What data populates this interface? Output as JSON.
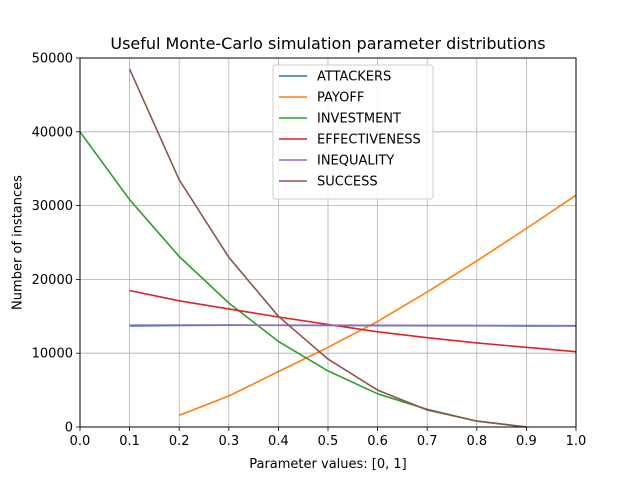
{
  "chart_data": {
    "type": "line",
    "title": "Useful Monte-Carlo simulation parameter distributions",
    "xlabel": "Parameter values: [0, 1]",
    "ylabel": "Number of instances",
    "xlim": [
      0.0,
      1.0
    ],
    "ylim": [
      0,
      50000
    ],
    "xticks": [
      "0.0",
      "0.1",
      "0.2",
      "0.3",
      "0.4",
      "0.5",
      "0.6",
      "0.7",
      "0.8",
      "0.9",
      "1.0"
    ],
    "yticks": [
      "0",
      "10000",
      "20000",
      "30000",
      "40000",
      "50000"
    ],
    "grid": true,
    "legend_position": "top-center",
    "series": [
      {
        "name": "ATTACKERS",
        "color": "#1f77b4",
        "x": [
          0.1,
          0.2,
          0.3,
          0.4,
          0.5,
          0.6,
          0.7,
          0.8,
          0.9,
          1.0
        ],
        "y": [
          13700,
          13750,
          13800,
          13780,
          13760,
          13740,
          13720,
          13720,
          13700,
          13680
        ]
      },
      {
        "name": "PAYOFF",
        "color": "#ff7f0e",
        "x": [
          0.2,
          0.3,
          0.4,
          0.5,
          0.6,
          0.7,
          0.8,
          0.9,
          1.0
        ],
        "y": [
          1600,
          4200,
          7500,
          10800,
          14300,
          18300,
          22500,
          26900,
          31400
        ]
      },
      {
        "name": "INVESTMENT",
        "color": "#2ca02c",
        "x": [
          0.0,
          0.1,
          0.2,
          0.3,
          0.4,
          0.5,
          0.6,
          0.7,
          0.8,
          0.9
        ],
        "y": [
          40000,
          30800,
          23100,
          16800,
          11600,
          7600,
          4500,
          2400,
          800,
          0
        ]
      },
      {
        "name": "EFFECTIVENESS",
        "color": "#d62728",
        "x": [
          0.1,
          0.2,
          0.3,
          0.4,
          0.5,
          0.6,
          0.7,
          0.8,
          0.9,
          1.0
        ],
        "y": [
          18500,
          17100,
          16000,
          14900,
          13900,
          12900,
          12100,
          11400,
          10800,
          10200
        ]
      },
      {
        "name": "INEQUALITY",
        "color": "#9467bd",
        "x": [
          0.1,
          0.2,
          0.3,
          0.4,
          0.5,
          0.6,
          0.7,
          0.8,
          0.9,
          1.0
        ],
        "y": [
          13800,
          13820,
          13810,
          13800,
          13790,
          13780,
          13770,
          13760,
          13750,
          13730
        ]
      },
      {
        "name": "SUCCESS",
        "color": "#8c564b",
        "x": [
          0.1,
          0.2,
          0.3,
          0.4,
          0.5,
          0.6,
          0.7,
          0.8,
          0.9
        ],
        "y": [
          48500,
          33500,
          23000,
          15000,
          9200,
          5000,
          2300,
          800,
          0
        ]
      }
    ]
  }
}
